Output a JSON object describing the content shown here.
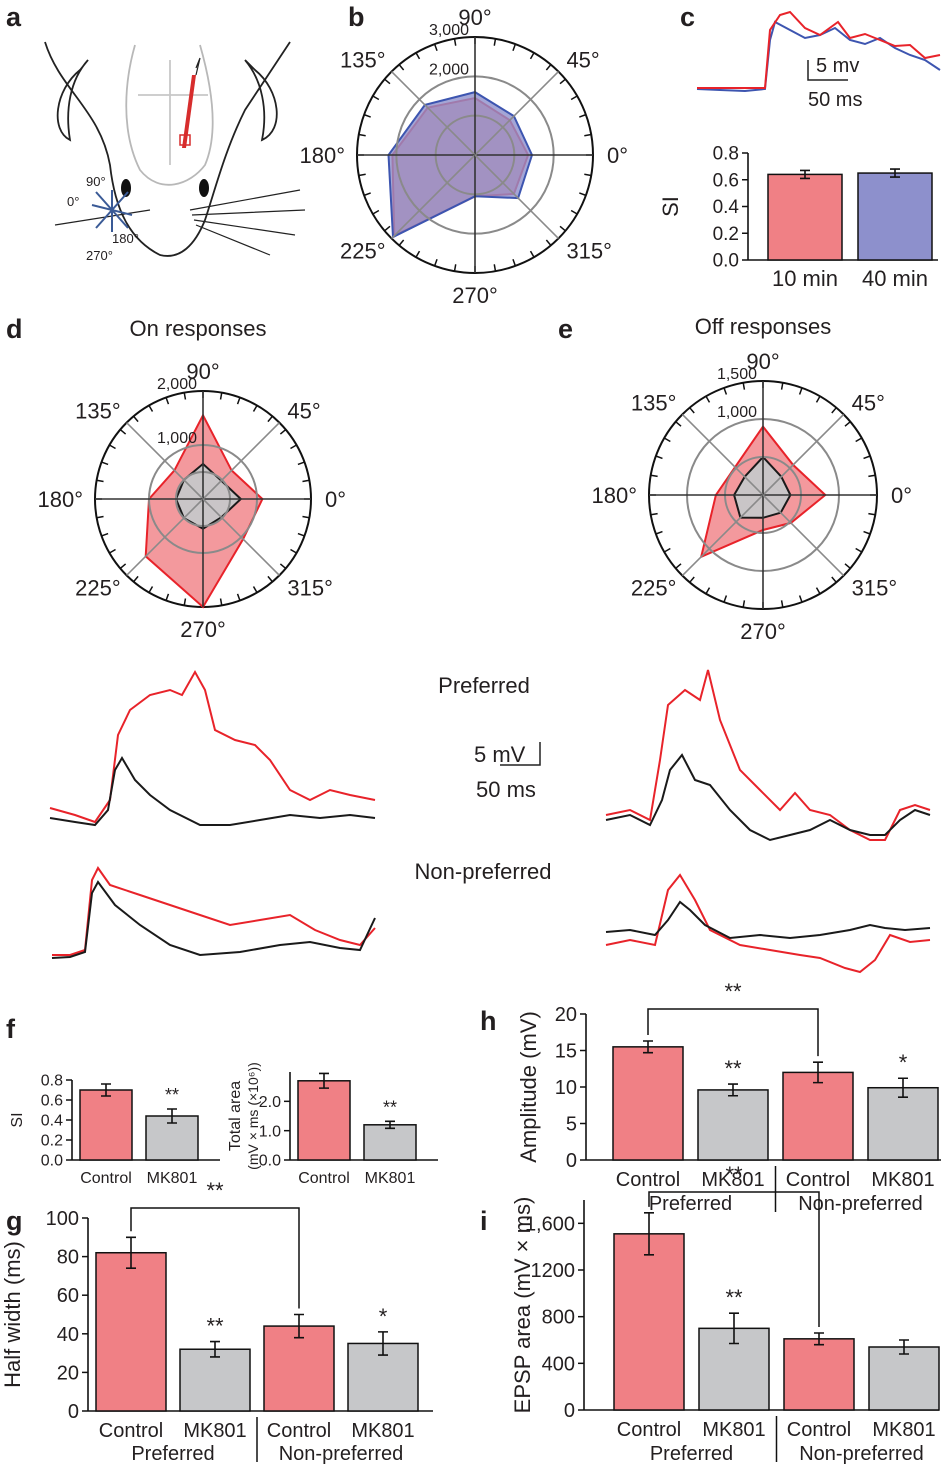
{
  "colors": {
    "red": "#e8232a",
    "redFill": "#f08085",
    "blue": "#3d55b0",
    "blueFill": "#8d90cc",
    "grey": "#c6c7c9",
    "black": "#1a1a1a",
    "gridGrey": "#8a8a8a"
  },
  "panel_labels": {
    "a": "a",
    "b": "b",
    "c": "c",
    "d": "d",
    "e": "e",
    "f": "f",
    "g": "g",
    "h": "h",
    "i": "i"
  },
  "schematic": {
    "deg90": "90°",
    "deg0": "0°",
    "deg180": "180°",
    "deg270": "270°"
  },
  "angle_labels": [
    "0°",
    "45°",
    "90°",
    "135°",
    "180°",
    "225°",
    "270°",
    "315°"
  ],
  "titles": {
    "d": "On responses",
    "e": "Off responses"
  },
  "trace_labels": {
    "preferred": "Preferred",
    "non_preferred": "Non-preferred"
  },
  "scalebars": {
    "c_v": "5 mv",
    "c_t": "50 ms",
    "main_v": "5 mV",
    "main_t": "50 ms"
  },
  "bottom_groups": {
    "preferred": "Preferred",
    "non_preferred": "Non-preferred"
  },
  "chart_data": [
    {
      "panel": "b",
      "type": "polar",
      "angles": [
        0,
        45,
        90,
        135,
        180,
        225,
        270,
        315
      ],
      "rlim": [
        0,
        3000
      ],
      "ring_labels": [
        "2,000",
        "3,000"
      ],
      "series": [
        {
          "name": "10 min",
          "color": "red",
          "values": [
            1350,
            1250,
            1450,
            1700,
            2100,
            2900,
            1050,
            1400
          ]
        },
        {
          "name": "40 min",
          "color": "blue",
          "values": [
            1450,
            1400,
            1600,
            1800,
            2200,
            2950,
            1050,
            1550
          ]
        }
      ]
    },
    {
      "panel": "c",
      "type": "bar",
      "ylabel": "SI",
      "ylim": [
        0,
        0.8
      ],
      "yticks": [
        "0.0",
        "0.2",
        "0.4",
        "0.6",
        "0.8"
      ],
      "categories": [
        "10 min",
        "40 min"
      ],
      "values": [
        0.64,
        0.65
      ],
      "errors": [
        0.03,
        0.03
      ],
      "bar_colors": [
        "red",
        "blue"
      ]
    },
    {
      "panel": "d",
      "type": "polar",
      "angles": [
        0,
        45,
        90,
        135,
        180,
        225,
        270,
        315
      ],
      "rlim": [
        0,
        2000
      ],
      "ring_labels": [
        "1,000",
        "2,000"
      ],
      "series": [
        {
          "name": "Control",
          "color": "red",
          "values": [
            1100,
            750,
            1550,
            750,
            1000,
            1500,
            2000,
            1050
          ]
        },
        {
          "name": "MK801",
          "color": "black",
          "values": [
            700,
            480,
            650,
            500,
            500,
            500,
            550,
            480
          ]
        }
      ]
    },
    {
      "panel": "e",
      "type": "polar",
      "angles": [
        0,
        45,
        90,
        135,
        180,
        225,
        270,
        315
      ],
      "rlim": [
        0,
        1500
      ],
      "ring_labels": [
        "1,000",
        "1,500"
      ],
      "series": [
        {
          "name": "Control",
          "color": "red",
          "values": [
            820,
            560,
            900,
            520,
            620,
            1150,
            460,
            520
          ]
        },
        {
          "name": "MK801",
          "color": "black",
          "values": [
            360,
            340,
            500,
            340,
            380,
            420,
            300,
            330
          ]
        }
      ]
    },
    {
      "panel": "f1",
      "type": "bar",
      "ylabel": "SI",
      "ylim": [
        0,
        0.8
      ],
      "yticks": [
        "0.0",
        "0.2",
        "0.4",
        "0.6",
        "0.8"
      ],
      "categories": [
        "Control",
        "MK801"
      ],
      "values": [
        0.7,
        0.44
      ],
      "errors": [
        0.06,
        0.07
      ],
      "bar_colors": [
        "red",
        "grey"
      ],
      "annotations": [
        "",
        "**"
      ]
    },
    {
      "panel": "f2",
      "type": "bar",
      "ylabel": "Total area",
      "ylabel_units": "(mV × ms (×10⁶))",
      "ylim": [
        0,
        3.0
      ],
      "yticks": [
        "0.0",
        "1.0",
        "2.0"
      ],
      "categories": [
        "Control",
        "MK801"
      ],
      "values": [
        2.7,
        1.2
      ],
      "errors": [
        0.25,
        0.12
      ],
      "bar_colors": [
        "red",
        "grey"
      ],
      "annotations": [
        "",
        "**"
      ]
    },
    {
      "panel": "g",
      "type": "bar",
      "ylabel": "Half width (ms)",
      "ylim": [
        0,
        100
      ],
      "yticks": [
        "0",
        "20",
        "40",
        "60",
        "80",
        "100"
      ],
      "categories": [
        "Control",
        "MK801",
        "Control",
        "MK801"
      ],
      "groups": [
        "Preferred",
        "Non-preferred"
      ],
      "values": [
        82,
        32,
        44,
        35
      ],
      "errors": [
        8,
        4,
        6,
        6
      ],
      "bar_colors": [
        "red",
        "grey",
        "red",
        "grey"
      ],
      "annotations": [
        "",
        "**",
        "",
        "*"
      ],
      "bracket": {
        "from": 0,
        "to": 2,
        "label": "**"
      }
    },
    {
      "panel": "h",
      "type": "bar",
      "ylabel": "Amplitude (mV)",
      "ylim": [
        0,
        20
      ],
      "yticks": [
        "0",
        "5",
        "10",
        "15",
        "20"
      ],
      "categories": [
        "Control",
        "MK801",
        "Control",
        "MK801"
      ],
      "groups": [
        "Preferred",
        "Non-preferred"
      ],
      "values": [
        15.5,
        9.6,
        12.0,
        9.9
      ],
      "errors": [
        0.8,
        0.8,
        1.4,
        1.3
      ],
      "bar_colors": [
        "red",
        "grey",
        "red",
        "grey"
      ],
      "annotations": [
        "",
        "**",
        "",
        "*"
      ],
      "bracket": {
        "from": 0,
        "to": 2,
        "label": "**"
      }
    },
    {
      "panel": "i",
      "type": "bar",
      "ylabel": "EPSP area (mV × ms)",
      "ylim": [
        0,
        1800
      ],
      "yticks": [
        "0",
        "400",
        "800",
        "1200",
        "1,600"
      ],
      "categories": [
        "Control",
        "MK801",
        "Control",
        "MK801"
      ],
      "groups": [
        "Preferred",
        "Non-preferred"
      ],
      "values": [
        1510,
        700,
        610,
        540
      ],
      "errors": [
        180,
        130,
        50,
        60
      ],
      "bar_colors": [
        "red",
        "grey",
        "red",
        "grey"
      ],
      "annotations": [
        "",
        "**",
        "",
        ""
      ],
      "bracket": {
        "from": 0,
        "to": 2,
        "label": "**"
      }
    }
  ]
}
